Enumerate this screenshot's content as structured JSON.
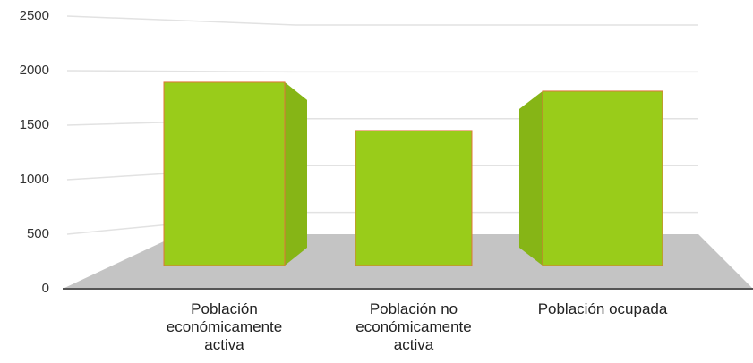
{
  "chart_data": {
    "type": "bar3d",
    "categories": [
      "Población económicamente activa",
      "Población no económicamente activa",
      "Población ocupada"
    ],
    "values": [
      2050,
      1510,
      1950
    ],
    "color": "#99cc1a",
    "ylim": [
      0,
      2500
    ],
    "yticks": [
      0,
      500,
      1000,
      1500,
      2000,
      2500
    ],
    "grid": true
  }
}
